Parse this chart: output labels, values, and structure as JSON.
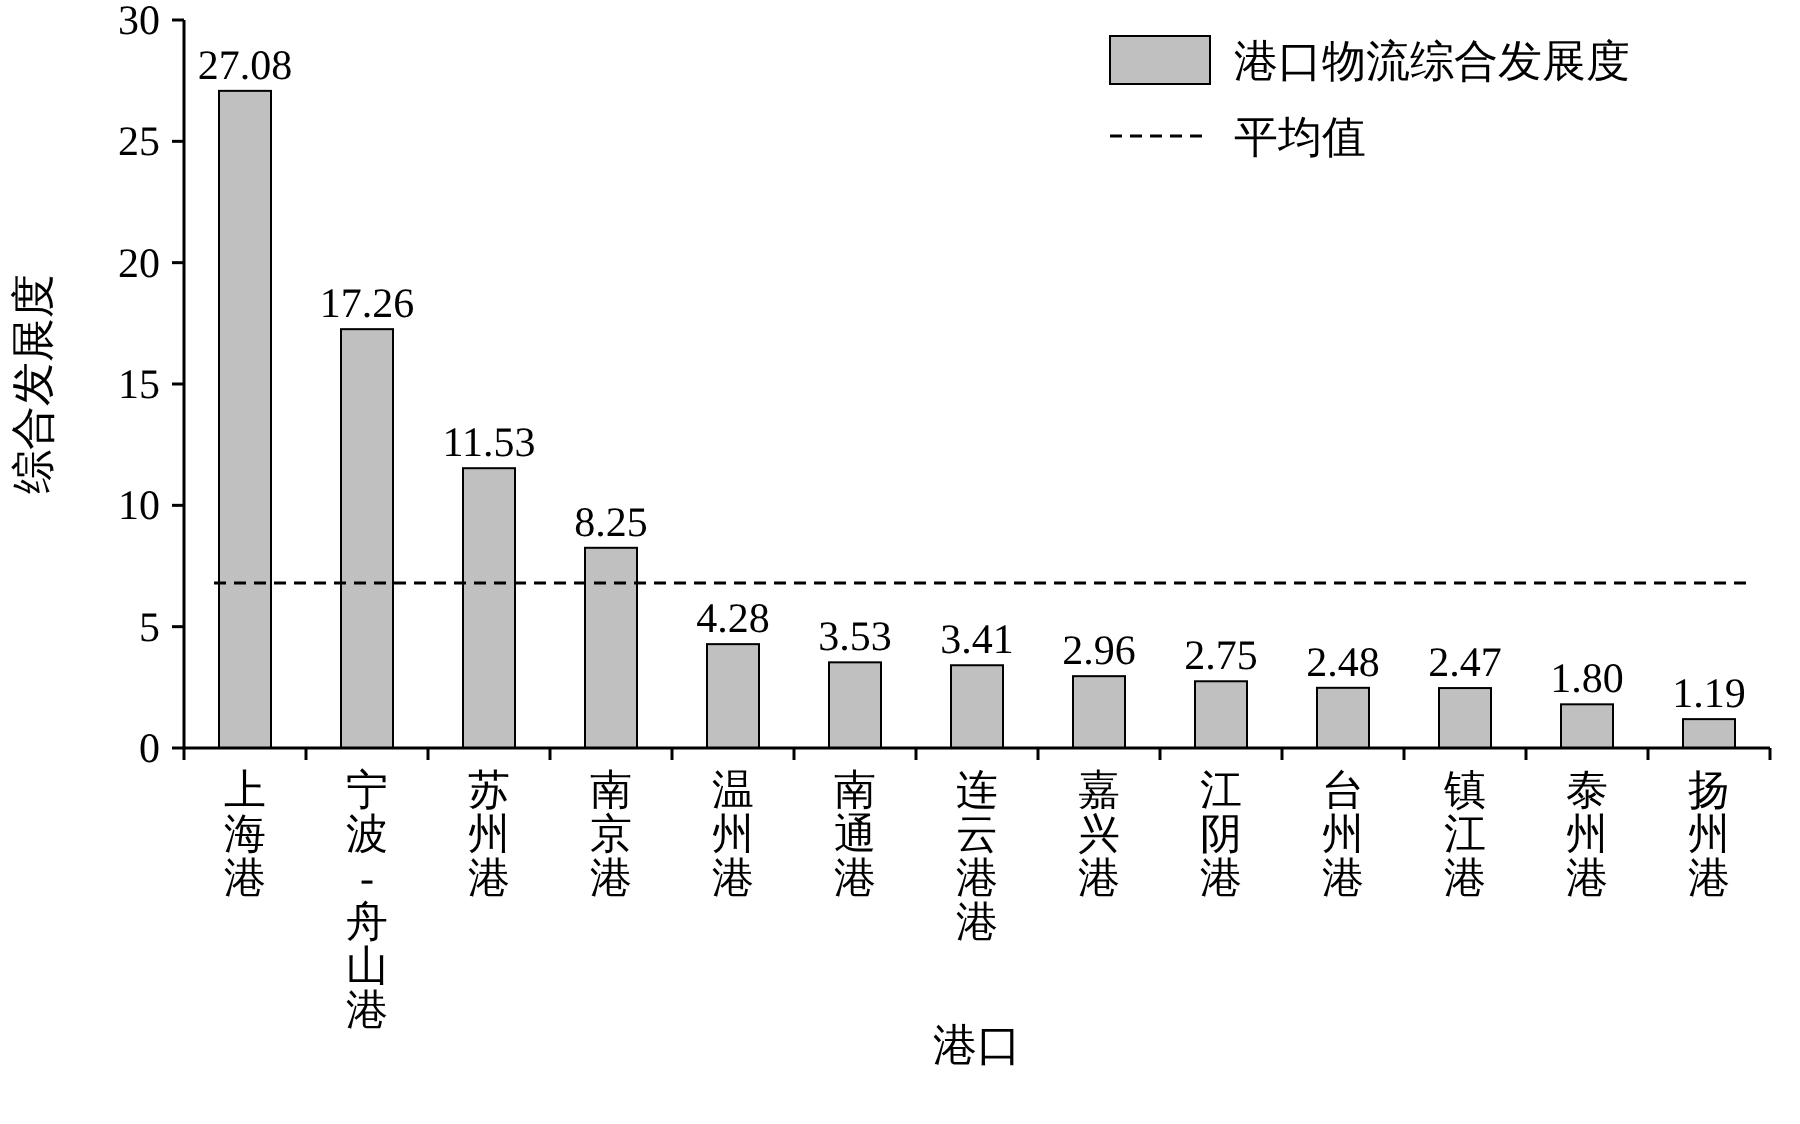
{
  "chart_data": {
    "type": "bar",
    "xlabel": "港口",
    "ylabel": "综合发展度",
    "categories": [
      "上海港",
      "宁波-舟山港",
      "苏州港",
      "南京港",
      "温州港",
      "南通港",
      "连云港港",
      "嘉兴港",
      "江阴港",
      "台州港",
      "镇江港",
      "泰州港",
      "扬州港"
    ],
    "series": [
      {
        "name": "港口物流综合发展度",
        "color": "#c0c0c0",
        "values": [
          27.08,
          17.26,
          11.53,
          8.25,
          4.28,
          3.53,
          3.41,
          2.96,
          2.75,
          2.48,
          2.47,
          1.8,
          1.19
        ],
        "value_labels": [
          "27.08",
          "17.26",
          "11.53",
          "8.25",
          "4.28",
          "3.53",
          "3.41",
          "2.96",
          "2.75",
          "2.48",
          "2.47",
          "1.80",
          "1.19"
        ]
      }
    ],
    "ref_lines": [
      {
        "axis": "y",
        "value": 6.8,
        "label": "平均值",
        "line_style": "dashed",
        "color": "#000000"
      }
    ],
    "ylim": [
      0,
      30
    ],
    "yticks": [
      0,
      5,
      10,
      15,
      20,
      25,
      30
    ],
    "grid": false,
    "legend": "top right"
  }
}
